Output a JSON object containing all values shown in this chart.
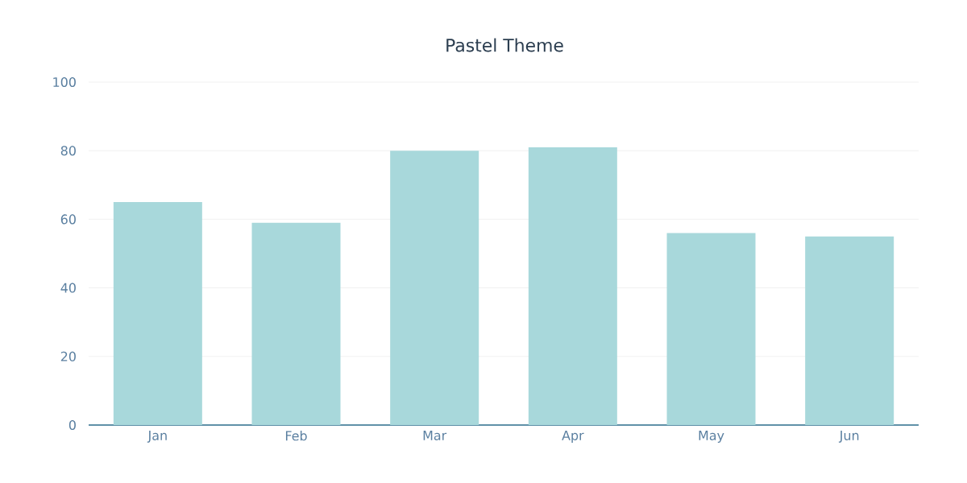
{
  "chart_data": {
    "type": "bar",
    "title": "Pastel Theme",
    "categories": [
      "Jan",
      "Feb",
      "Mar",
      "Apr",
      "May",
      "Jun"
    ],
    "values": [
      65,
      59,
      80,
      81,
      56,
      55
    ],
    "color": "#a8d8db",
    "ylim": [
      0,
      100
    ],
    "yticks": [
      0,
      20,
      40,
      60,
      80,
      100
    ],
    "grid": "y"
  }
}
